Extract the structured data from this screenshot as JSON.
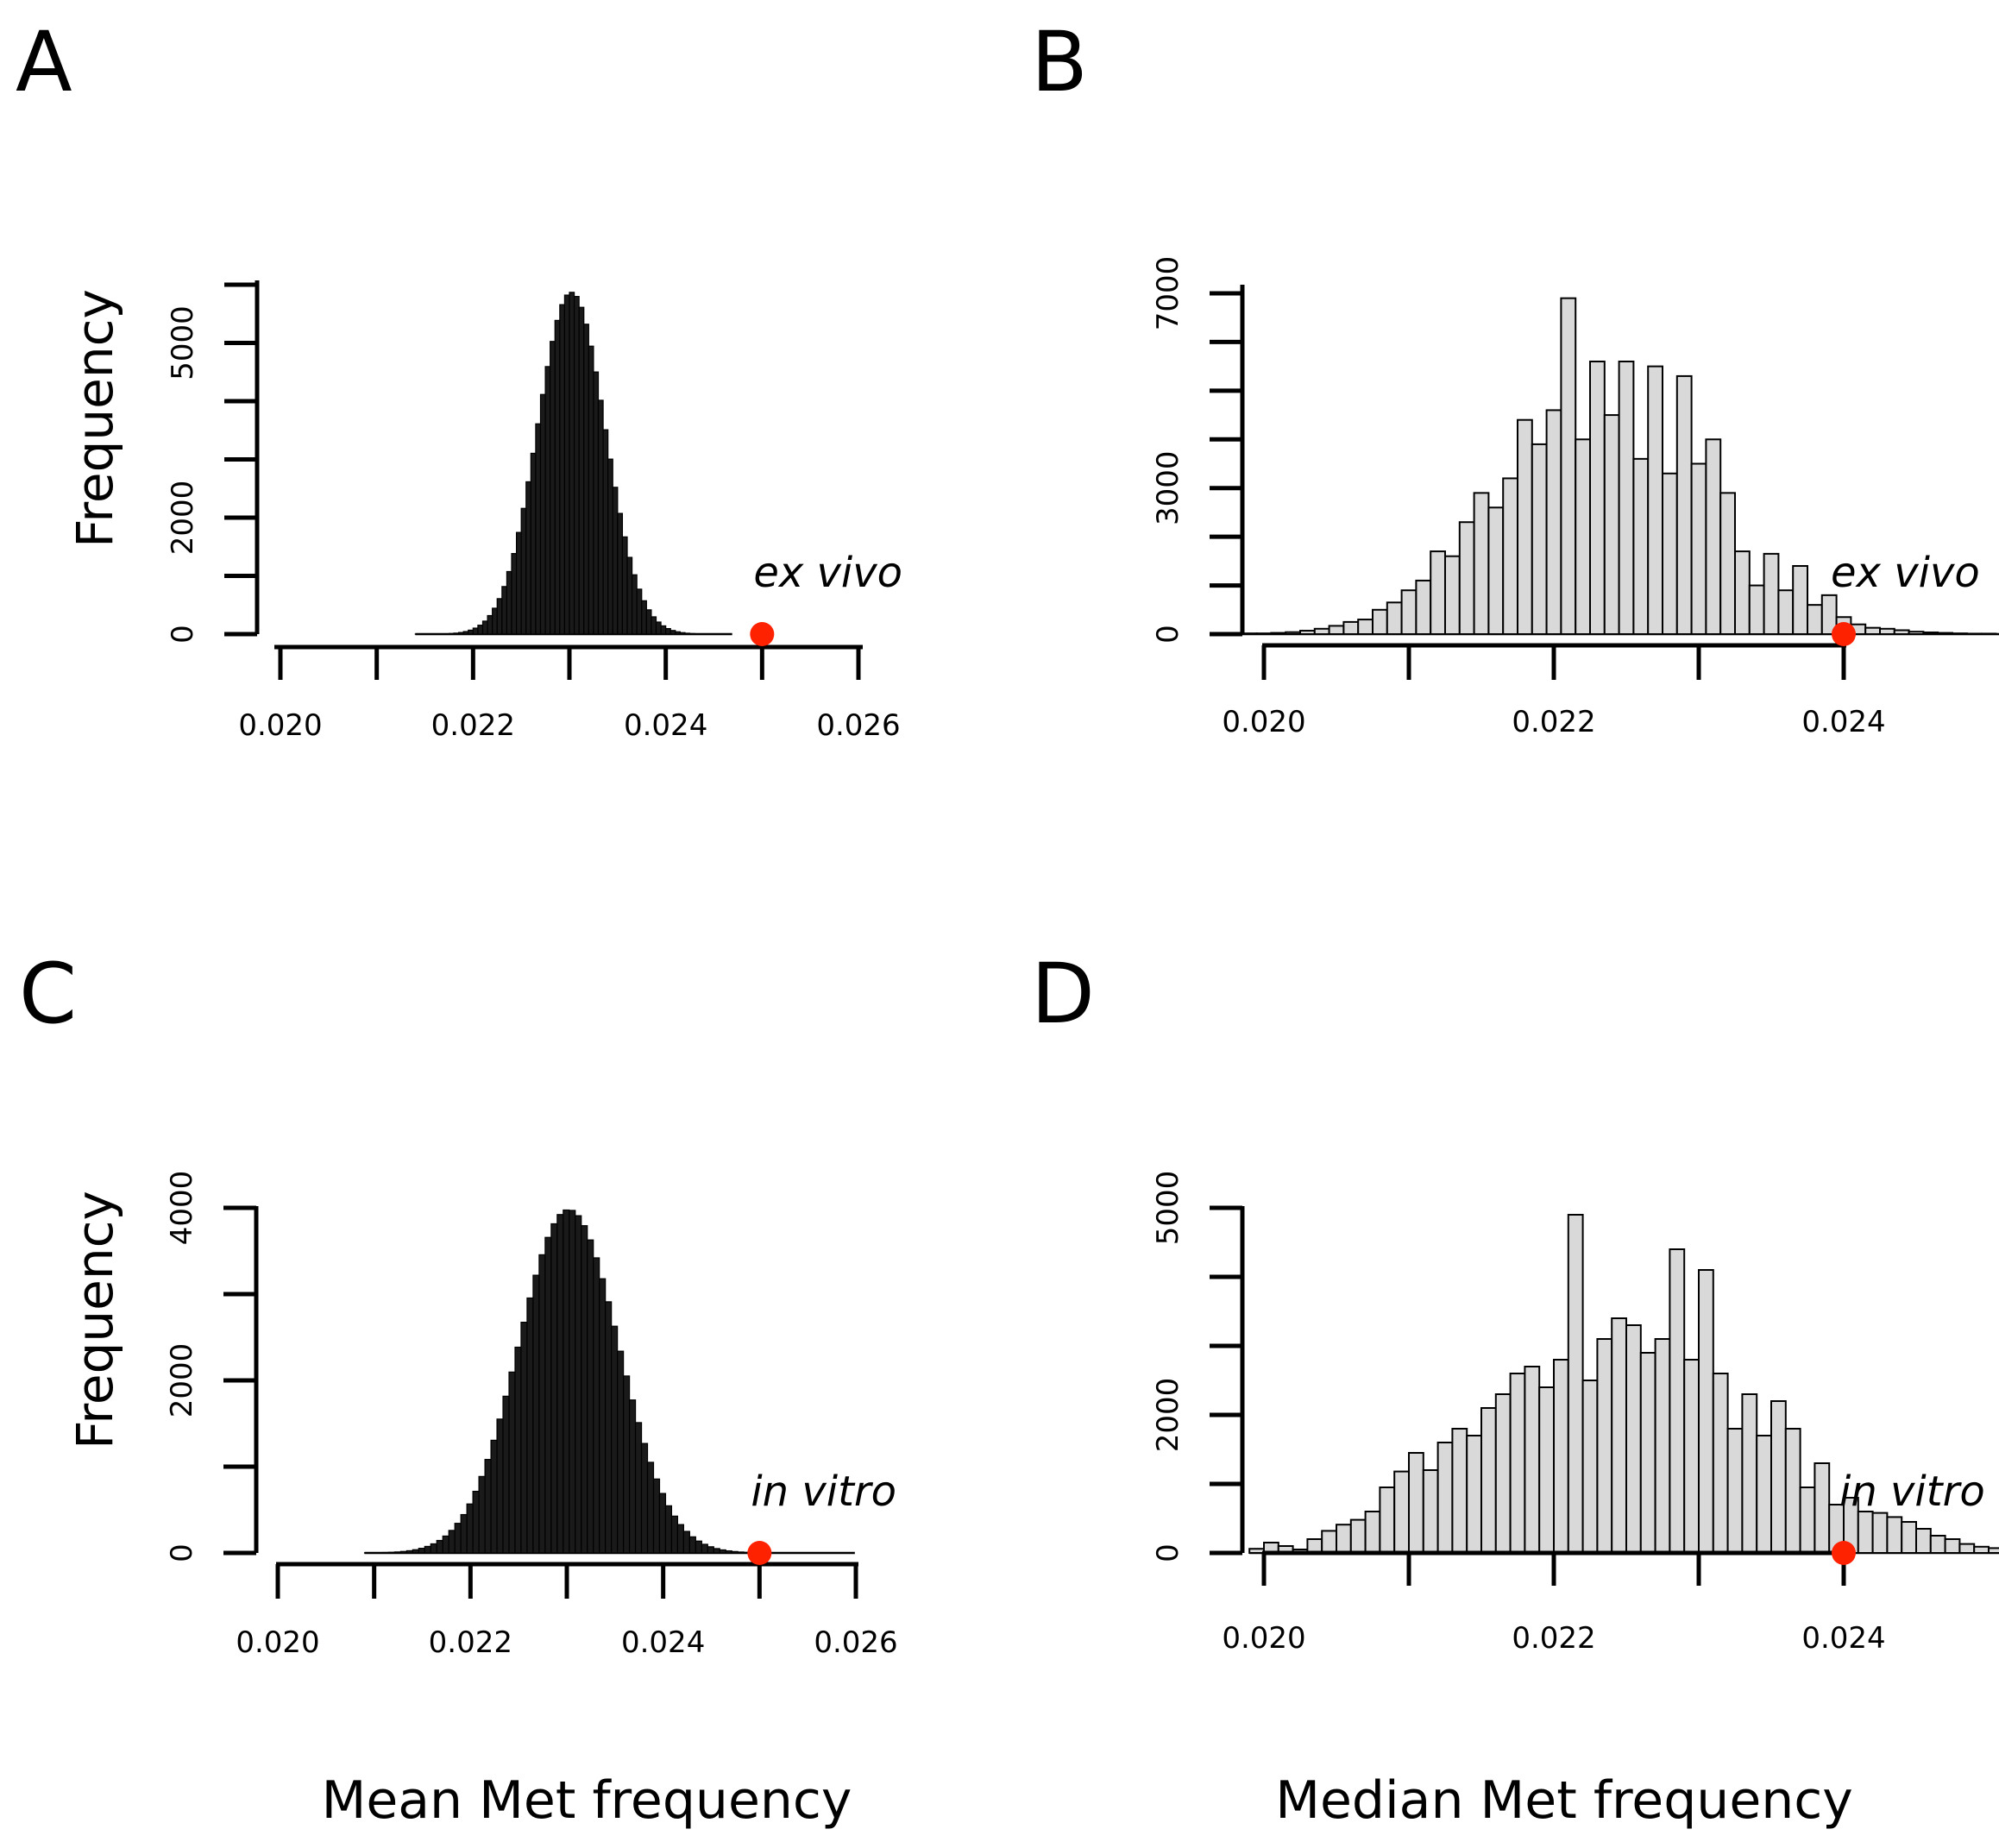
{
  "chart_data": [
    {
      "panel": "A",
      "type": "bar",
      "ylabel": "Frequency",
      "xlabel": "",
      "xlim": [
        0.02,
        0.026
      ],
      "ylim": [
        0,
        6000
      ],
      "xticks": [
        "0.020",
        "0.022",
        "0.024",
        "0.026"
      ],
      "yticks": [
        "0",
        "2000",
        "5000"
      ],
      "bins": {
        "start": 0.0214,
        "end": 0.0246,
        "count": 64
      },
      "distribution": {
        "mean": 0.02302,
        "sd": 0.00035,
        "peak": 5870
      },
      "annotation": {
        "label": "ex vivo",
        "x": 0.025,
        "y": 0
      },
      "fill": "#1a1a1a",
      "marker_color": "#ff2200"
    },
    {
      "panel": "B",
      "type": "bar",
      "ylabel": "",
      "xlabel": "",
      "xlim": [
        0.02,
        0.024
      ],
      "ylim": [
        0,
        7000
      ],
      "xticks": [
        "0.020",
        "0.022",
        "0.024"
      ],
      "yticks": [
        "0",
        "3000",
        "7000"
      ],
      "bins": {
        "start": 0.01985,
        "width": 0.0001
      },
      "values": [
        15,
        15,
        25,
        40,
        70,
        110,
        170,
        250,
        300,
        500,
        650,
        900,
        1100,
        1700,
        1600,
        2300,
        2900,
        2600,
        3200,
        4400,
        3900,
        4600,
        6900,
        4000,
        5600,
        4500,
        5600,
        3600,
        5500,
        3300,
        5300,
        3500,
        4000,
        2900,
        1700,
        1000,
        1650,
        900,
        1400,
        600,
        800,
        350,
        200,
        130,
        110,
        80,
        50,
        35,
        25,
        15,
        10,
        10
      ],
      "annotation": {
        "label": "ex vivo",
        "x": 0.024,
        "y": 0
      },
      "fill": "#d9d9d9",
      "marker_color": "#ff2200"
    },
    {
      "panel": "C",
      "type": "bar",
      "ylabel": "Frequency",
      "xlabel": "Mean Met frequency",
      "xlim": [
        0.02,
        0.026
      ],
      "ylim": [
        0,
        4000
      ],
      "xticks": [
        "0.020",
        "0.022",
        "0.024",
        "0.026"
      ],
      "yticks": [
        "0",
        "2000",
        "4000"
      ],
      "bins": {
        "start": 0.0209,
        "end": 0.0259,
        "count": 80
      },
      "distribution": {
        "mean": 0.02302,
        "sd": 0.00052,
        "peak": 3980
      },
      "annotation": {
        "label": "in vitro",
        "x": 0.025,
        "y": 0
      },
      "fill": "#1a1a1a",
      "marker_color": "#ff2200"
    },
    {
      "panel": "D",
      "type": "bar",
      "ylabel": "",
      "xlabel": "Median Met frequency",
      "xlim": [
        0.02,
        0.024
      ],
      "ylim": [
        0,
        5000
      ],
      "xticks": [
        "0.020",
        "0.022",
        "0.024"
      ],
      "yticks": [
        "0",
        "2000",
        "5000"
      ],
      "bins": {
        "start": 0.0199,
        "width": 0.0001
      },
      "values": [
        60,
        150,
        100,
        50,
        200,
        320,
        410,
        480,
        600,
        950,
        1180,
        1450,
        1200,
        1600,
        1800,
        1700,
        2100,
        2300,
        2600,
        2700,
        2400,
        2800,
        4900,
        2500,
        3100,
        3400,
        3300,
        2900,
        3100,
        4400,
        2800,
        4100,
        2600,
        1800,
        2300,
        1700,
        2200,
        1800,
        950,
        1300,
        700,
        800,
        600,
        580,
        520,
        450,
        350,
        250,
        200,
        130,
        90,
        70,
        40,
        30,
        25,
        18,
        12,
        10
      ],
      "annotation": {
        "label": "in vitro",
        "x": 0.024,
        "y": 0
      },
      "fill": "#d9d9d9",
      "marker_color": "#ff2200"
    }
  ]
}
